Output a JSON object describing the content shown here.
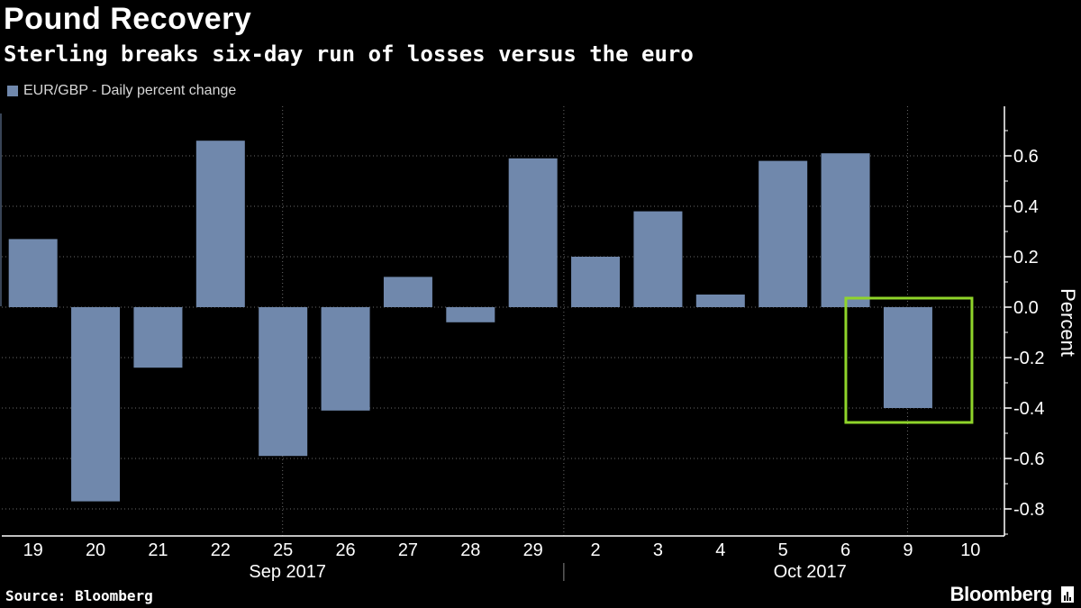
{
  "header": {
    "title": "Pound Recovery",
    "subtitle": "Sterling breaks six-day run of losses versus the euro"
  },
  "legend": {
    "label": "EUR/GBP - Daily percent change",
    "color": "#7088ac"
  },
  "footer": {
    "source": "Source: Bloomberg",
    "brand": "Bloomberg"
  },
  "chart_data": {
    "type": "bar",
    "title": "Pound Recovery",
    "subtitle": "Sterling breaks six-day run of losses versus the euro",
    "categories": [
      "19",
      "20",
      "21",
      "22",
      "25",
      "26",
      "27",
      "28",
      "29",
      "2",
      "3",
      "4",
      "5",
      "6",
      "9",
      "10"
    ],
    "category_groups": [
      {
        "label": "Sep 2017",
        "from": 0,
        "to": 8
      },
      {
        "label": "Oct 2017",
        "from": 9,
        "to": 15
      }
    ],
    "series": [
      {
        "name": "EUR/GBP - Daily percent change",
        "values": [
          0.27,
          -0.77,
          -0.24,
          0.66,
          -0.59,
          -0.41,
          0.12,
          -0.06,
          0.59,
          0.2,
          0.38,
          0.05,
          0.58,
          0.61,
          -0.4,
          null
        ]
      }
    ],
    "ylabel": "Percent",
    "ylim": [
      -0.9,
      0.8
    ],
    "yticks": [
      0.6,
      0.4,
      0.2,
      0.0,
      -0.2,
      -0.4,
      -0.6,
      -0.8
    ],
    "ytick_labels": [
      "0.6",
      "0.4",
      "0.2",
      "0.0",
      "-0.2",
      "-0.4",
      "-0.6",
      "-0.8"
    ],
    "y_axis_position": "right",
    "highlight": {
      "category": "9",
      "color": "#8fd42a"
    },
    "bar_color": "#7088ac",
    "grid": true
  }
}
